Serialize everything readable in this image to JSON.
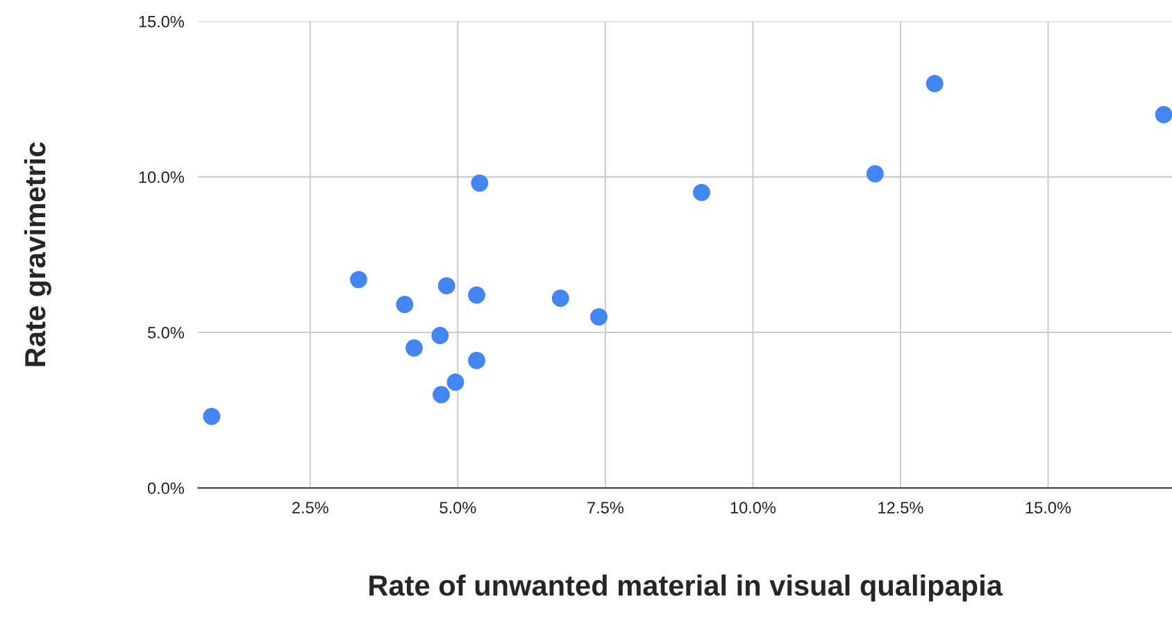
{
  "chart_data": {
    "type": "scatter",
    "xlabel": "Rate of unwanted material in visual qualipapia",
    "ylabel": "Rate gravimetric",
    "x": [
      0.83,
      3.32,
      4.1,
      4.81,
      5.32,
      5.37,
      4.7,
      4.26,
      5.32,
      4.96,
      4.72,
      6.74,
      7.39,
      9.13,
      12.07,
      13.08,
      16.96
    ],
    "series": [
      {
        "color": "#4285f4",
        "values": [
          2.3,
          6.7,
          5.9,
          6.5,
          6.2,
          9.8,
          4.9,
          4.5,
          4.1,
          3.4,
          3.0,
          6.1,
          5.5,
          9.5,
          10.1,
          13.0,
          12.0
        ]
      }
    ],
    "xlim": [
      0.6,
      17.1
    ],
    "ylim": [
      0,
      15
    ],
    "xticks": [
      {
        "value": 2.5,
        "label": "2.5%"
      },
      {
        "value": 5,
        "label": "5.0%"
      },
      {
        "value": 7.5,
        "label": "7.5%"
      },
      {
        "value": 10,
        "label": "10.0%"
      },
      {
        "value": 12.5,
        "label": "12.5%"
      },
      {
        "value": 15,
        "label": "15.0%"
      }
    ],
    "yticks": [
      {
        "value": 0,
        "label": "0.0%"
      },
      {
        "value": 5,
        "label": "5.0%"
      },
      {
        "value": 10,
        "label": "10.0%"
      },
      {
        "value": 15,
        "label": "15.0%"
      }
    ],
    "grid": true,
    "marker": "circle"
  }
}
